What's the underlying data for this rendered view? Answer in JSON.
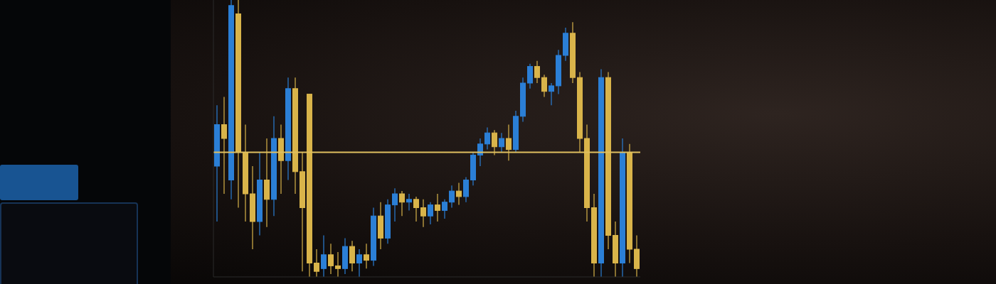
{
  "chart_data": {
    "type": "candlestick",
    "categories": [
      null,
      null,
      null,
      null,
      null,
      null,
      null,
      null,
      null,
      null,
      null,
      null,
      null,
      null,
      null,
      null,
      null,
      null,
      null,
      null,
      null,
      null,
      null,
      null,
      null,
      null,
      null,
      null,
      null,
      null,
      null,
      null,
      null,
      null,
      null,
      null,
      null,
      null,
      null,
      null,
      null,
      null,
      null,
      null,
      null,
      null,
      null,
      null,
      null,
      null,
      null,
      null,
      null,
      null,
      null,
      null,
      null,
      null,
      null,
      null
    ],
    "open": [
      40,
      55,
      35,
      95,
      45,
      30,
      20,
      35,
      28,
      50,
      42,
      68,
      38,
      66,
      5,
      3,
      8,
      4,
      3,
      11,
      5,
      8,
      6,
      22,
      14,
      26,
      30,
      27,
      28,
      25,
      22,
      26,
      24,
      27,
      31,
      29,
      35,
      44,
      48,
      52,
      47,
      50,
      46,
      58,
      70,
      76,
      72,
      67,
      69,
      80,
      88,
      72,
      50,
      25,
      5,
      72,
      15,
      5,
      45,
      10
    ],
    "high": [
      62,
      65,
      100,
      100,
      55,
      40,
      45,
      50,
      58,
      55,
      72,
      72,
      45,
      66,
      10,
      15,
      12,
      9,
      14,
      13,
      10,
      12,
      25,
      27,
      28,
      32,
      31,
      30,
      29,
      28,
      27,
      30,
      28,
      33,
      34,
      36,
      45,
      50,
      54,
      53,
      52,
      55,
      60,
      72,
      77,
      78,
      73,
      70,
      82,
      90,
      92,
      74,
      55,
      30,
      75,
      74,
      20,
      50,
      48,
      15
    ],
    "low": [
      20,
      30,
      28,
      25,
      20,
      10,
      15,
      18,
      22,
      30,
      35,
      30,
      2,
      0,
      0,
      0,
      1,
      0,
      1,
      2,
      0,
      3,
      4,
      10,
      12,
      20,
      22,
      24,
      20,
      18,
      19,
      20,
      21,
      25,
      26,
      27,
      33,
      40,
      46,
      44,
      45,
      42,
      45,
      56,
      68,
      70,
      65,
      62,
      66,
      78,
      70,
      45,
      20,
      0,
      0,
      10,
      0,
      0,
      5,
      0
    ],
    "close": [
      55,
      50,
      98,
      45,
      30,
      20,
      35,
      28,
      50,
      42,
      68,
      38,
      25,
      5,
      2,
      8,
      4,
      3,
      11,
      5,
      8,
      6,
      22,
      14,
      26,
      30,
      27,
      28,
      25,
      22,
      26,
      24,
      27,
      31,
      29,
      35,
      44,
      48,
      52,
      47,
      50,
      46,
      58,
      70,
      76,
      72,
      67,
      69,
      80,
      88,
      72,
      50,
      25,
      5,
      72,
      15,
      5,
      45,
      10,
      3
    ],
    "colors": [
      "#2b7fd6",
      "#d9b44a",
      "#2b7fd6",
      "#d9b44a",
      "#d9b44a",
      "#d9b44a",
      "#2b7fd6",
      "#d9b44a",
      "#2b7fd6",
      "#d9b44a",
      "#2b7fd6",
      "#d9b44a",
      "#d9b44a",
      "#d9b44a",
      "#d9b44a",
      "#2b7fd6",
      "#d9b44a",
      "#d9b44a",
      "#2b7fd6",
      "#d9b44a",
      "#2b7fd6",
      "#d9b44a",
      "#2b7fd6",
      "#d9b44a",
      "#2b7fd6",
      "#2b7fd6",
      "#d9b44a",
      "#2b7fd6",
      "#d9b44a",
      "#d9b44a",
      "#2b7fd6",
      "#d9b44a",
      "#2b7fd6",
      "#2b7fd6",
      "#d9b44a",
      "#2b7fd6",
      "#2b7fd6",
      "#2b7fd6",
      "#2b7fd6",
      "#d9b44a",
      "#2b7fd6",
      "#d9b44a",
      "#2b7fd6",
      "#2b7fd6",
      "#2b7fd6",
      "#d9b44a",
      "#d9b44a",
      "#2b7fd6",
      "#2b7fd6",
      "#2b7fd6",
      "#d9b44a",
      "#d9b44a",
      "#d9b44a",
      "#d9b44a",
      "#2b7fd6",
      "#d9b44a",
      "#d9b44a",
      "#2b7fd6",
      "#d9b44a",
      "#d9b44a"
    ],
    "reference_line": 45,
    "ylim": [
      0,
      100
    ],
    "yticks": [],
    "tick_labels": false,
    "grid": false
  }
}
